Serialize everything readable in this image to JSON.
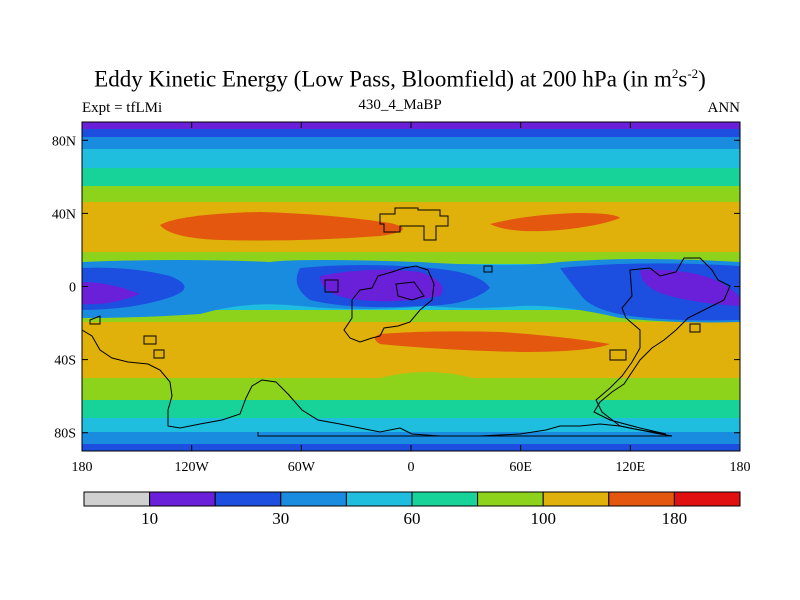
{
  "title": {
    "text": "Eddy Kinetic Energy (Low Pass, Bloomfield) at 200 hPa (in m",
    "sup1": "2",
    "mid": "s",
    "sup2": "-2",
    "close": ")"
  },
  "subtitle_left": "Expt = tfLMi",
  "subtitle_center": "430_4_MaBP",
  "subtitle_right": "ANN",
  "map": {
    "lon_range": [
      -180,
      180
    ],
    "lat_range": [
      -90,
      90
    ],
    "x_ticks": [
      {
        "value": -180,
        "label": "180"
      },
      {
        "value": -120,
        "label": "120W"
      },
      {
        "value": -60,
        "label": "60W"
      },
      {
        "value": 0,
        "label": "0"
      },
      {
        "value": 60,
        "label": "60E"
      },
      {
        "value": 120,
        "label": "120E"
      },
      {
        "value": 180,
        "label": "180"
      }
    ],
    "y_ticks": [
      {
        "value": 80,
        "label": "80N"
      },
      {
        "value": 40,
        "label": "40N"
      },
      {
        "value": 0,
        "label": "0"
      },
      {
        "value": -40,
        "label": "40S"
      },
      {
        "value": -80,
        "label": "80S"
      }
    ]
  },
  "colorbar": {
    "colors": [
      "#d0d0d0",
      "#6a1fd8",
      "#1c4fe0",
      "#1a8cdf",
      "#1fbedf",
      "#17d39a",
      "#8ed31b",
      "#dfb10a",
      "#e3570f",
      "#e01010"
    ],
    "labels": [
      {
        "boundary": 1,
        "text": "10"
      },
      {
        "boundary": 3,
        "text": "30"
      },
      {
        "boundary": 5,
        "text": "60"
      },
      {
        "boundary": 7,
        "text": "100"
      },
      {
        "boundary": 9,
        "text": "180"
      }
    ]
  }
}
